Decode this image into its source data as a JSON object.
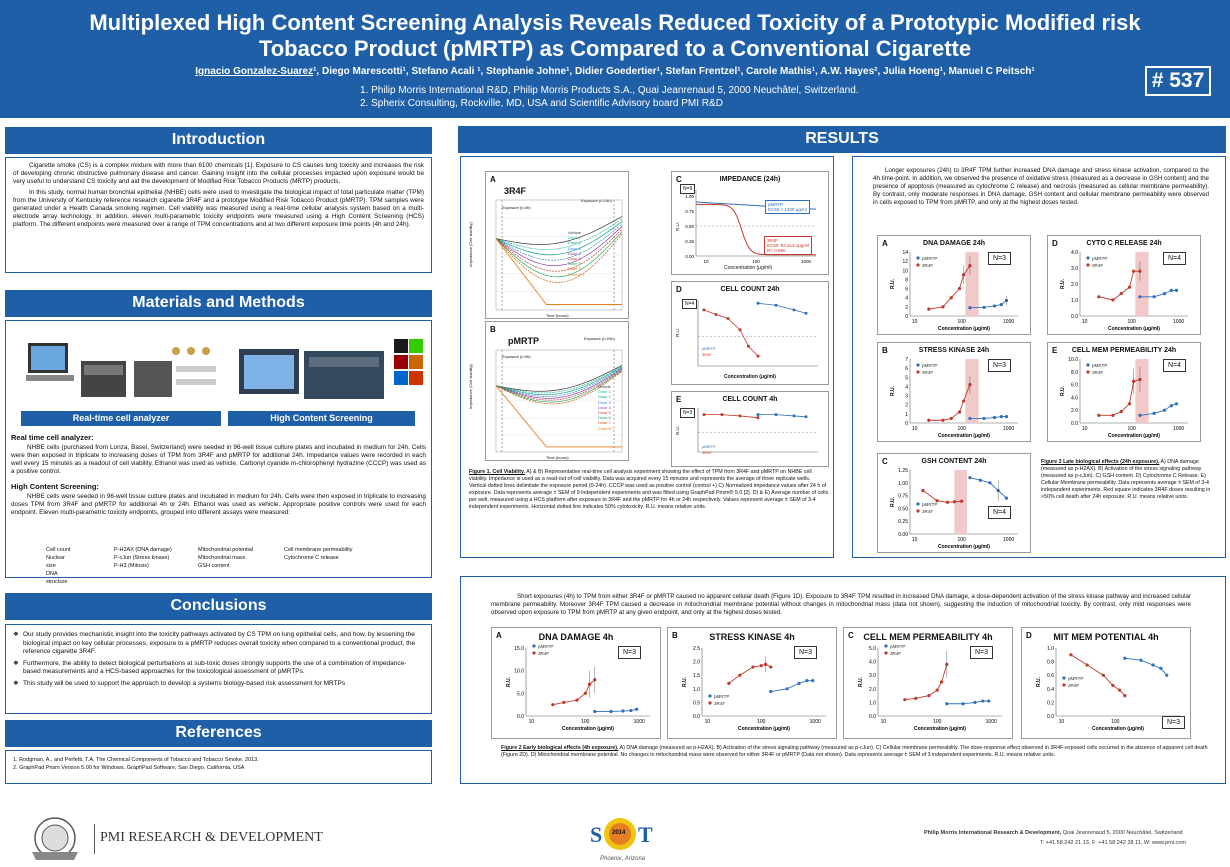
{
  "header": {
    "title": "Multiplexed High Content Screening Analysis Reveals Reduced Toxicity of a Prototypic Modified risk Tobacco Product (pMRTP) as Compared to a Conventional Cigarette",
    "authors_first": "Ignacio Gonzalez-Suarez",
    "authors_rest": "¹, Diego Marescotti¹, Stefano Acali ¹, Stephanie Johne¹, Didier Goedertier¹, Stefan Frentzel¹, Carole Mathis¹, A.W. Hayes², Julia Hoeng¹, Manuel C Peitsch¹",
    "affiliation1": "1. Philip Morris International R&D, Philip Morris Products S.A., Quai Jeanrenaud 5, 2000 Neuchâtel, Switzerland.",
    "affiliation2": "2. Spherix Consulting, Rockville, MD, USA and Scientific Advisory board PMI R&D",
    "poster_number": "# 537"
  },
  "intro": {
    "heading": "Introduction",
    "p1": "Cigarette smoke (CS) is a complex mixture with more than 6100 chemicals [1]. Exposure to CS causes lung toxicity and increases the risk of developing chronic obstructive pulmonary disease and cancer. Gaining insight into the cellular processes impacted upon exposure would be very useful to understand CS toxicity and aid the development of Modified Risk Tobacco Products (MRTP) products.",
    "p2": "In this study, normal human bronchial epithelial (NHBE) cells were used to investigate the biological impact of total particulate matter (TPM) from the University of Kentucky reference research cigarette 3R4F and a prototype Modified Risk Tobacco Product (pMRTP). TPM samples were generated under a Health Canada smoking regimen. Cell viability was measured using a real-time cellular analysis system based on a multi-electrode array technology. In addition, eleven multi-parametric toxicity endpoints were measured using a High Content Screening (HCS) platform. The different endpoints were measured over a range of TPM concentrations and at two different exposure time points (4h and 24h)."
  },
  "methods": {
    "heading": "Materials and Methods",
    "cap1": "Real-time cell analyzer",
    "cap2": "High Content Screening",
    "sub1": "Real time cell analyzer:",
    "p1": "NHBE cells (purchased from Lonza, Basel, Switzerland) were seeded in 96-well tissue culture plates and incubated in medium for 24h. Cells were then exposed in triplicate to increasing doses of TPM from 3R4F and pMRTP for additional 24h. Impedance values were recorded in each well every 15 minutes as a readout of cell viability. Ethanol was used as vehicle. Carbonyl cyanide m-chlorophenyl hydrazine (CCCP) was used as a positive control.",
    "sub2": "High Content Screening:",
    "p2": "NHBE cells were seeded in 96-well tissue culture plates and incubated in medium for 24h. Cells were then exposed in triplicate to increasing doses TPM from 3R4F and pMRTP for additional 4h or 24h. Ethanol was used as vehicle. Appropriate positive controls were used for each endpoint. Eleven multi-parametric toxicity endpoints, grouped into different assays were measured:",
    "bullets": [
      "Cell count",
      "Nuclear size",
      "DNA structure",
      "P-H2AX (DNA damage)",
      "P-cJun (Stress kinase)",
      "P-H3 (Mitosis)",
      "Mitochondrial potential",
      "Mitochondrial mass",
      "GSH content",
      "Cell membrane permeability",
      "Cytochrome C release"
    ]
  },
  "conclusions": {
    "heading": "Conclusions",
    "items": [
      "Our study provides mechanistic insight into the toxicity pathways activated by CS TPM on lung epithelial cells, and how, by lessening the biological impact on key cellular processes, exposure to a pMRTP reduces overall toxicity when compared to a conventional product, the reference cigarette 3R4F.",
      "Furthermore, the ability to detect biological perturbations at sub-toxic doses strongly supports the use of a combination of impedance-based measurements and a HCS-based approaches for the toxicological assessment of pMRTPs.",
      "This study will be used to support the approach to develop a systems biology-based risk assessment for MRTPs"
    ]
  },
  "references": {
    "heading": "References",
    "r1": "1.     Rodgman, A., and Perfetti, T.A. The Chemical Components of Tobacco and Tobacco Smoke. 2013.",
    "r2": "2.     GraphPad Prism Version 5.00 for Windows. GraphPad Software, San Diego, California, USA"
  },
  "results": {
    "heading": "RESULTS",
    "fig1_caption_title": "Figure 1. Cell Viability.",
    "fig1_caption": "A) & B) Representative real-time cell analysis experiment showing the effect of TPM from 3R4F and pMRTP on NHBE cell viability. Impedance is used as a read-out of cell viability. Data was acquired every 15 minutes and represents the average of three replicate wells. Vertical dotted lines delimitate the exposure period (0-24h). CCCP was used as positive control (control +) C) Normalized impedance values after 24 h of exposure. Data represents average ± SEM of 9 independent experiments and was fitted using GraphPad Prism® 5.0 [2]. D) & E) Average number of cells per well, measured using a HCS platform after exposure to 3R4F and the pMRTP for 4h or 24h respectively. Values represent average ± SEM of 3-4 independent experiments. Horizontal dotted line indicates 50% cytotoxicity. R.U. means relative units.",
    "late_text": "Longer exposures (24h) to 3R4F TPM further increased DNA damage and stress kinase activation, compared to the 4h time-point. In addition, we observed the presence of oxidative stress (measured as a decrease in GSH content) and the presence of apoptosis (measured as cytochrome C release) and necrosis (measured as cellular membrane permeability). By contrast, only moderate responses in DNA damage, GSH content and cellular membrane permeability were observed in cells exposed to TPM from pMRTP, and only at the highest doses tested.",
    "fig3_caption_title": "Figure 3 Late biological effects (24h exposure).",
    "fig3_caption": "A) DNA damage (measured as p-H2AX). B) Activation of the stress signaling pathway (measured as p-cJun). C) GSH content. D) Cytochrome C Release. E) Cellular Membrane permeability. Data represents average ± SEM of 3-4 independent experiments. Red square indicates 3R4F doses resulting in >50% cell death after 24h exposure. R.U. means relative units.",
    "early_text": "Short exposures (4h) to TPM from either 3R4F or pMRTP caused no apparent cellular death (Figure 1D). Exposure to 3R4F TPM resulted in increased DNA damage, a dose-dependent activation of the stress kinase pathway and increased cellular membrane permeability. Moreover 3R4F TPM caused a decrease in mitochondrial membrane potential without changes in mitochondrial mass (data not shown), suggesting the induction of mitochondrial toxicity. By contrast, only mild responses were observed upon exposure to TPM from pMRTP at any given endpoint, and only at the highest doses tested.",
    "fig2_caption_title": "Figure 2 Early biological effects (4h exposure).",
    "fig2_caption": "A) DNA damage (measured as p-H2AX). B) Activation of the stress signaling pathway (measured as p-cJun). C) Cellular membrane permeability. The dose-response effect observed in 3R4F-exposed cells occurred in the absence of apparent cell death (Figure 2D). D) Mitochondrial membrane potential. No changes in mitochondrial mass were observed for either 3R4F or pMRTP (Data not shown). Data represents average ± SEM of 3 independent experiments. R.U. means relative units."
  },
  "fig1": {
    "A_label": "A",
    "A_name": "3R4F",
    "B_label": "B",
    "B_name": "pMRTP",
    "exposure_4h": "Exposure (t=4h)",
    "exposure_24h": "Exposure (t=24h)",
    "ylabel": "Impedance (Cell viability)",
    "xlabel": "Time (hours)",
    "legend": [
      "Vehicle",
      "Dose 1",
      "Dose 2",
      "Dose 3",
      "Dose 4",
      "Dose 5",
      "Dose 6",
      "Dose 7",
      "Control +"
    ],
    "C_label": "C",
    "C_title": "IMPEDANCE (24h)",
    "C_n": "N=9",
    "C_pm": "pMRTP",
    "C_pm_ec": "EC50 > 1200 μg/ml",
    "C_3r": "3R4F",
    "C_3r_ec": "EC50: 92.3±3.1μg/ml",
    "C_3r_r2": "R²: 0.960",
    "D_label": "D",
    "D_title": "CELL COUNT 24h",
    "D_n": "N=4",
    "E_label": "E",
    "E_title": "CELL COUNT 4h",
    "E_n": "N=3",
    "conc": "Concentration (μg/ml)",
    "ru": "R.U.",
    "pm": "pMRTP",
    "r3": "3R4F"
  },
  "fig3": {
    "A": "A",
    "A_t": "DNA DAMAGE 24h",
    "A_n": "N=3",
    "B": "B",
    "B_t": "STRESS KINASE 24h",
    "B_n": "N=3",
    "C": "C",
    "C_t": "GSH CONTENT 24h",
    "C_n": "N=4",
    "D": "D",
    "D_t": "CYTO C RELEASE 24h",
    "D_n": "N=4",
    "E": "E",
    "E_t": "CELL MEM PERMEABILITY 24h",
    "E_n": "N=4"
  },
  "fig2": {
    "A": "A",
    "A_t": "DNA DAMAGE 4h",
    "A_n": "N=3",
    "B": "B",
    "B_t": "STRESS KINASE 4h",
    "B_n": "N=3",
    "C": "C",
    "C_t": "CELL MEM PERMEABILITY 4h",
    "C_n": "N=3",
    "D": "D",
    "D_t": "MIT MEM POTENTIAL 4h",
    "D_n": "N=3"
  },
  "footer": {
    "brand": "PMI RESEARCH & DEVELOPMENT",
    "sot_year": "2014",
    "sot_city": "Phoenix, Arizona",
    "address_bold": "Philip Morris International Research & Development,",
    "address": " Quai Jeanrenaud 5, 2000 Neuchâtel, Switzerland",
    "contact": "T: +41 58 242 21 13, F: +41 58 242 28 11, W: www.pmi.com"
  },
  "colors": {
    "header_blue": "#1f5fa8",
    "pmrtp": "#2f6fc0",
    "r3r4f": "#c0392b",
    "shade": "#f2c9c9"
  }
}
